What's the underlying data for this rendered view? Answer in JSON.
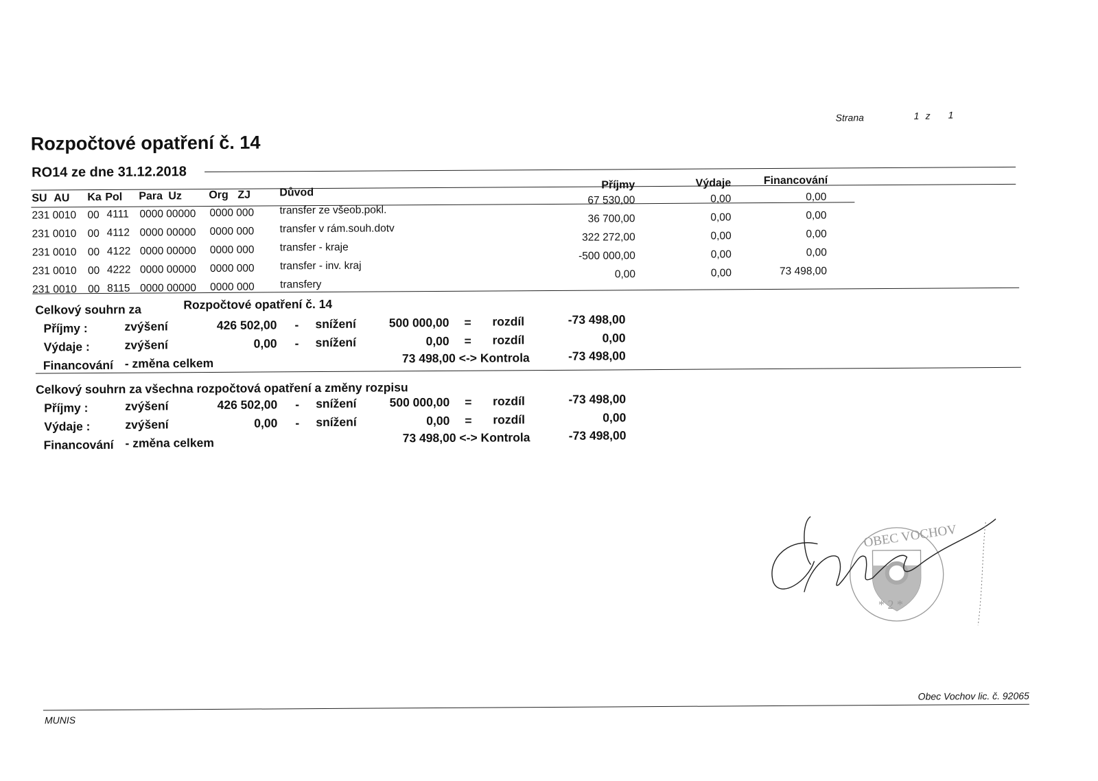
{
  "header": {
    "page_label": "Strana",
    "page_number": "1",
    "page_of": "z",
    "page_total": "1",
    "title": "Rozpočtové opatření č. 14",
    "subtitle": "RO14 ze dne 31.12.2018"
  },
  "table": {
    "columns": [
      "SU",
      "AU",
      "Ka",
      "Pol",
      "Para",
      "Uz",
      "Org",
      "ZJ",
      "Důvod",
      "Příjmy",
      "Výdaje",
      "Financování"
    ],
    "rows": [
      {
        "su_au": "231 0010",
        "ka": "00",
        "pol": "4111",
        "para_uz": "0000 00000",
        "org_zj": "0000 000",
        "duvod": "transfer ze všeob.pokl.",
        "prijmy": "67 530,00",
        "vydaje": "0,00",
        "financovani": "0,00"
      },
      {
        "su_au": "231 0010",
        "ka": "00",
        "pol": "4112",
        "para_uz": "0000 00000",
        "org_zj": "0000 000",
        "duvod": "transfer v rám.souh.dotv",
        "prijmy": "36 700,00",
        "vydaje": "0,00",
        "financovani": "0,00"
      },
      {
        "su_au": "231 0010",
        "ka": "00",
        "pol": "4122",
        "para_uz": "0000 00000",
        "org_zj": "0000 000",
        "duvod": "transfer - kraje",
        "prijmy": "322 272,00",
        "vydaje": "0,00",
        "financovani": "0,00"
      },
      {
        "su_au": "231 0010",
        "ka": "00",
        "pol": "4222",
        "para_uz": "0000 00000",
        "org_zj": "0000 000",
        "duvod": "transfer - inv. kraj",
        "prijmy": "-500 000,00",
        "vydaje": "0,00",
        "financovani": "0,00"
      },
      {
        "su_au": "231 0010",
        "ka": "00",
        "pol": "8115",
        "para_uz": "0000 00000",
        "org_zj": "0000 000",
        "duvod": "transfery",
        "prijmy": "0,00",
        "vydaje": "0,00",
        "financovani": "73 498,00"
      }
    ]
  },
  "summary1": {
    "title": "Celkový souhrn za",
    "title_ref": "Rozpočtové opatření č. 14",
    "prijmy": {
      "label": "Příjmy :",
      "inc_label": "zvýšení",
      "inc": "426 502,00",
      "dash": "-",
      "dec_label": "snížení",
      "dec": "500 000,00",
      "eq": "=",
      "diff_label": "rozdíl",
      "diff": "-73 498,00"
    },
    "vydaje": {
      "label": "Výdaje :",
      "inc_label": "zvýšení",
      "inc": "0,00",
      "dash": "-",
      "dec_label": "snížení",
      "dec": "0,00",
      "eq": "=",
      "diff_label": "rozdíl",
      "diff": "0,00"
    },
    "financovani": {
      "label": "Financování",
      "change_label": "- změna celkem",
      "value": "73 498,00 <-> Kontrola",
      "control": "-73 498,00"
    }
  },
  "summary2": {
    "title": "Celkový souhrn za všechna rozpočtová opatření a změny rozpisu",
    "prijmy": {
      "label": "Příjmy :",
      "inc_label": "zvýšení",
      "inc": "426 502,00",
      "dash": "-",
      "dec_label": "snížení",
      "dec": "500 000,00",
      "eq": "=",
      "diff_label": "rozdíl",
      "diff": "-73 498,00"
    },
    "vydaje": {
      "label": "Výdaje :",
      "inc_label": "zvýšení",
      "inc": "0,00",
      "dash": "-",
      "dec_label": "snížení",
      "dec": "0,00",
      "eq": "=",
      "diff_label": "rozdíl",
      "diff": "0,00"
    },
    "financovani": {
      "label": "Financování",
      "change_label": "- změna celkem",
      "value": "73 498,00 <-> Kontrola",
      "control": "-73 498,00"
    }
  },
  "stamp": {
    "text": "OBEC VOCHOV",
    "number": "* 2 *"
  },
  "footer": {
    "left": "MUNIS",
    "right": "Obec Vochov lic. č. 92065"
  }
}
